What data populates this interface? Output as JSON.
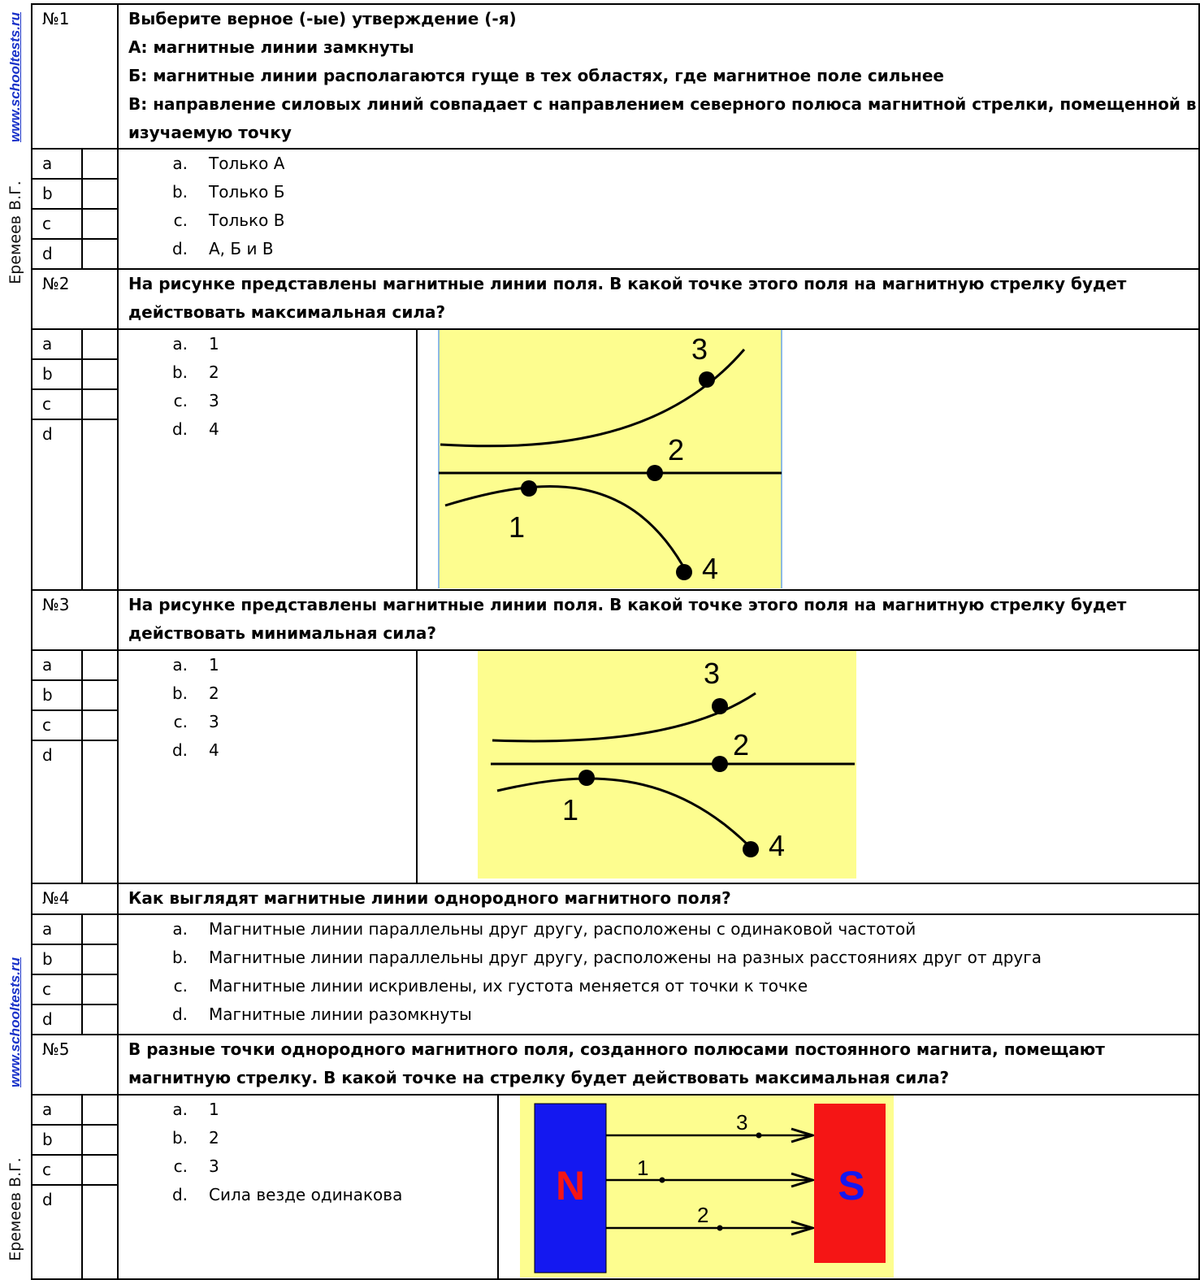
{
  "sidebar": {
    "link": "www.schooltests.ru",
    "author": "Еремеев В.Г."
  },
  "letters": [
    "a",
    "b",
    "c",
    "d"
  ],
  "questions": [
    {
      "num": "№1",
      "lines": [
        "Выберите верное (-ые) утверждение (-я)",
        "А: магнитные линии замкнуты",
        "Б: магнитные линии располагаются гуще в тех областях,  где магнитное поле сильнее",
        "В: направление силовых линий совпадает с направлением северного полюса магнитной стрелки, помещенной в изучаемую точку"
      ],
      "options": [
        {
          "k": "a.",
          "t": "Только А"
        },
        {
          "k": "b.",
          "t": "Только Б"
        },
        {
          "k": "c.",
          "t": "Только В"
        },
        {
          "k": "d.",
          "t": "А, Б и В"
        }
      ]
    },
    {
      "num": "№2",
      "lines": [
        "На рисунке представлены магнитные линии поля. В какой точке этого поля на магнитную стрелку будет действовать максимальная сила?"
      ],
      "options": [
        {
          "k": "a.",
          "t": "1"
        },
        {
          "k": "b.",
          "t": "2"
        },
        {
          "k": "c.",
          "t": "3"
        },
        {
          "k": "d.",
          "t": "4"
        }
      ],
      "figure_labels": [
        "1",
        "2",
        "3",
        "4"
      ]
    },
    {
      "num": "№3",
      "lines": [
        "На рисунке представлены магнитные линии поля. В какой точке этого поля на магнитную стрелку будет действовать минимальная сила?"
      ],
      "options": [
        {
          "k": "a.",
          "t": "1"
        },
        {
          "k": "b.",
          "t": "2"
        },
        {
          "k": "c.",
          "t": "3"
        },
        {
          "k": "d.",
          "t": "4"
        }
      ],
      "figure_labels": [
        "1",
        "2",
        "3",
        "4"
      ]
    },
    {
      "num": "№4",
      "lines": [
        "Как выглядят  магнитные линии однородного магнитного поля?"
      ],
      "options": [
        {
          "k": "a.",
          "t": "Магнитные линии параллельны друг другу, расположены с одинаковой частотой"
        },
        {
          "k": "b.",
          "t": "Магнитные линии параллельны друг другу, расположены на разных расстояниях друг от друга"
        },
        {
          "k": "c.",
          "t": "Магнитные линии искривлены, их густота меняется от точки к точке"
        },
        {
          "k": "d.",
          "t": "Магнитные линии разомкнуты"
        }
      ]
    },
    {
      "num": "№5",
      "lines": [
        "В разные точки однородного магнитного поля, созданного полюсами постоянного магнита, помещают магнитную стрелку. В какой точке на стрелку будет действовать максимальная сила?"
      ],
      "options": [
        {
          "k": "a.",
          "t": "1"
        },
        {
          "k": "b.",
          "t": "2"
        },
        {
          "k": "c.",
          "t": "3"
        },
        {
          "k": "d.",
          "t": "Сила везде одинакова"
        }
      ],
      "figure_labels": [
        "1",
        "2",
        "3"
      ],
      "poles": {
        "north": "N",
        "south": "S"
      }
    }
  ],
  "colors": {
    "figure_bg": "#fdfd8f",
    "north": "#1418f0",
    "south": "#f51515",
    "north_text": "#f51515",
    "south_text": "#1418f0",
    "link": "#1a33c9"
  }
}
